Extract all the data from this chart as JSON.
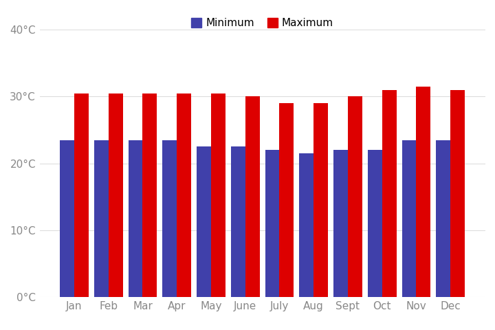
{
  "months": [
    "Jan",
    "Feb",
    "Mar",
    "Apr",
    "May",
    "June",
    "July",
    "Aug",
    "Sept",
    "Oct",
    "Nov",
    "Dec"
  ],
  "min_temps": [
    23.5,
    23.5,
    23.5,
    23.5,
    22.5,
    22.5,
    22.0,
    21.5,
    22.0,
    22.0,
    23.5,
    23.5
  ],
  "max_temps": [
    30.5,
    30.5,
    30.5,
    30.5,
    30.5,
    30.0,
    29.0,
    29.0,
    30.0,
    31.0,
    31.5,
    31.0
  ],
  "min_color": "#4040AA",
  "max_color": "#DD0000",
  "background_color": "#FFFFFF",
  "ylim": [
    0,
    40
  ],
  "yticks": [
    0,
    10,
    20,
    30,
    40
  ],
  "ytick_labels": [
    "0°C",
    "10°C",
    "20°C",
    "30°C",
    "40°C"
  ],
  "legend_min_label": "Minimum",
  "legend_max_label": "Maximum",
  "bar_width": 0.42,
  "grid_color": "#DDDDDD",
  "tick_fontsize": 11,
  "legend_fontsize": 11
}
